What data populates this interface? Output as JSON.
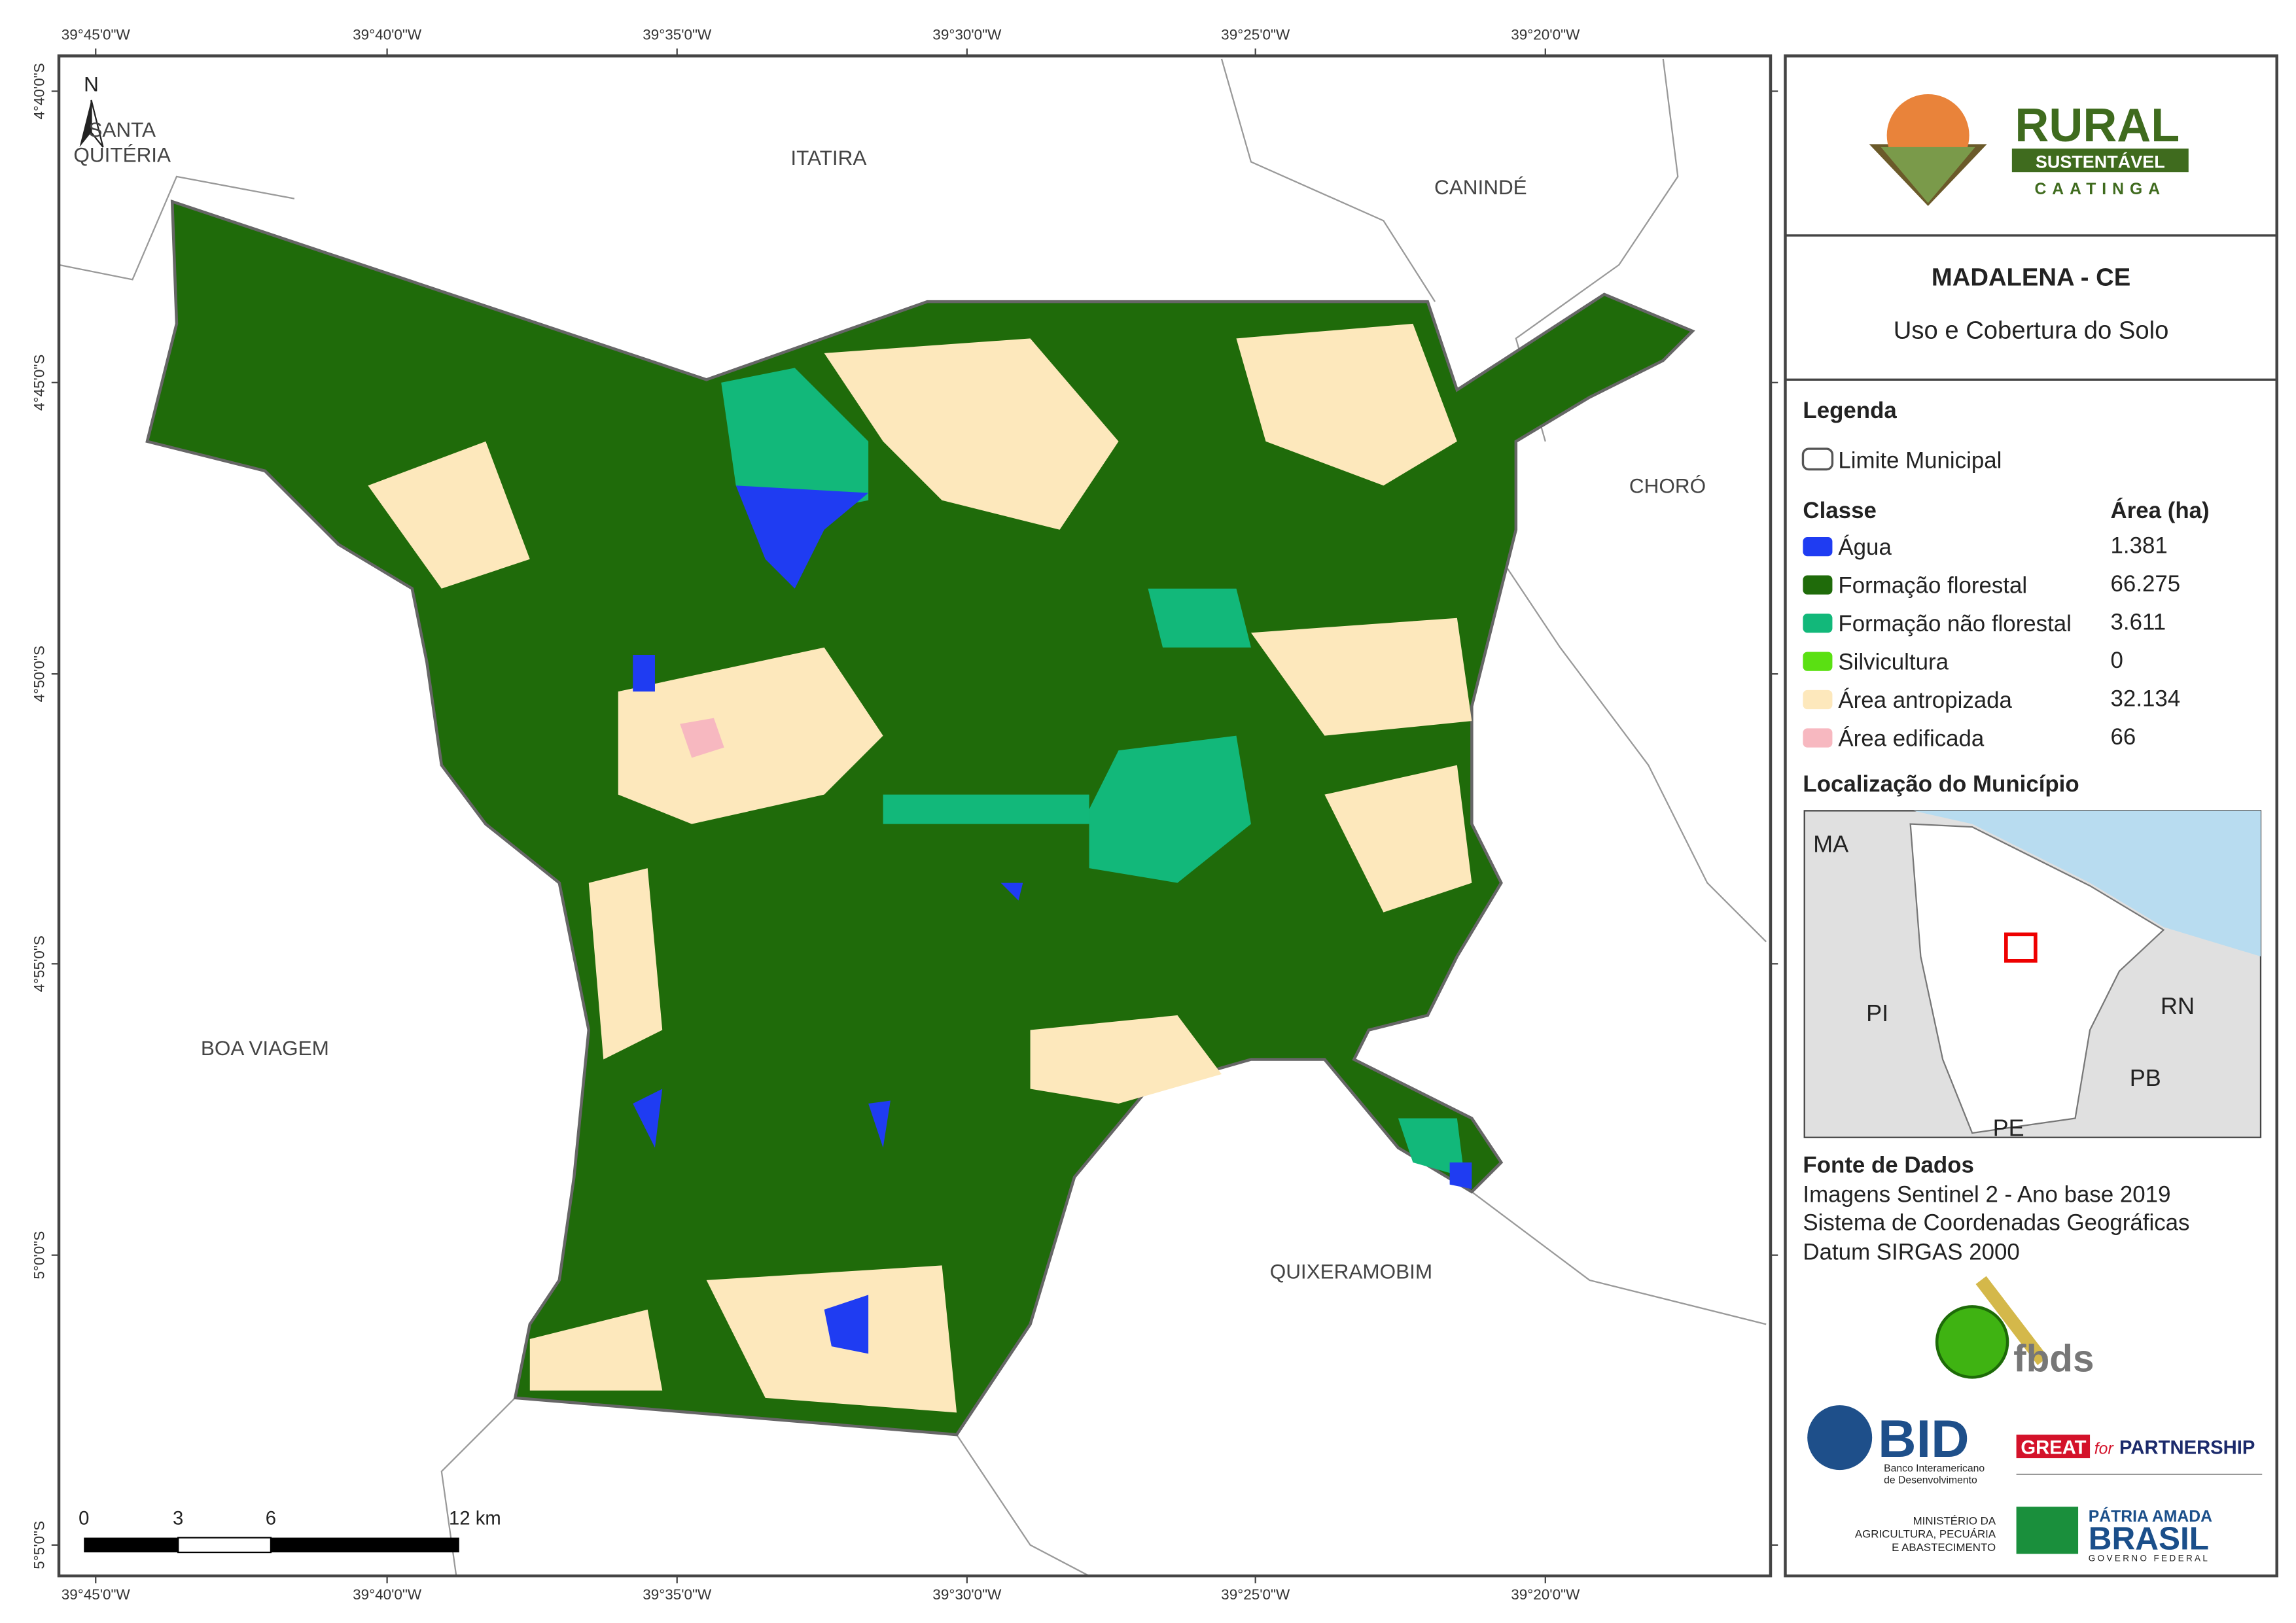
{
  "map": {
    "north": "N",
    "x_labels": [
      "39°45'0\"W",
      "39°40'0\"W",
      "39°35'0\"W",
      "39°30'0\"W",
      "39°25'0\"W",
      "39°20'0\"W"
    ],
    "y_labels": [
      "4°40'0\"S",
      "4°45'0\"S",
      "4°50'0\"S",
      "4°55'0\"S",
      "5°0'0\"S",
      "5°5'0\"S"
    ],
    "neighbors": [
      "ITATIRA",
      "CANINDÉ",
      "CHORÓ",
      "BOA VIAGEM",
      "QUIXERAMOBIM"
    ],
    "neighbor_two_line": [
      "SANTA",
      "QUITÉRIA"
    ],
    "scale_bar": [
      "0",
      "3",
      "6",
      "12 km"
    ]
  },
  "panel": {
    "logo": {
      "word": "RURAL",
      "band": "SUSTENTÁVEL",
      "sub": "CAATINGA"
    },
    "title": "MADALENA - CE",
    "subtitle": "Uso e Cobertura do Solo",
    "legend": {
      "title": "Legenda",
      "boundary": "Limite Municipal",
      "header": [
        "Classe",
        "Área (ha)"
      ],
      "classes": [
        {
          "name": "Água",
          "color": "#1f3cf2",
          "area": "1.381"
        },
        {
          "name": "Formação florestal",
          "color": "#1f6b0a",
          "area": "66.275"
        },
        {
          "name": "Formação não florestal",
          "color": "#12b87a",
          "area": "3.611"
        },
        {
          "name": "Silvicultura",
          "color": "#5ae012",
          "area": "0"
        },
        {
          "name": "Área antropizada",
          "color": "#fde8bc",
          "area": "32.134"
        },
        {
          "name": "Área edificada",
          "color": "#f7b8c0",
          "area": "66"
        }
      ]
    },
    "location": {
      "title": "Localização do Município",
      "states": [
        "MA",
        "PI",
        "RN",
        "PB",
        "PE"
      ]
    },
    "sources": {
      "title": "Fonte de Dados",
      "lines": [
        "Imagens Sentinel 2 - Ano base 2019",
        "Sistema de Coordenadas Geográficas",
        "Datum SIRGAS 2000"
      ]
    },
    "logos": {
      "fbds": "fbds",
      "bid": "BID",
      "bid_sub": [
        "Banco Interamericano",
        "de Desenvolvimento"
      ],
      "great": "GREAT",
      "great_for": "for",
      "great_partnership": "PARTNERSHIP",
      "ministry": [
        "MINISTÉRIO DA",
        "AGRICULTURA, PECUÁRIA",
        "E ABASTECIMENTO"
      ],
      "patria": "PÁTRIA AMADA",
      "brasil": "BRASIL",
      "governo": "GOVERNO FEDERAL"
    }
  }
}
